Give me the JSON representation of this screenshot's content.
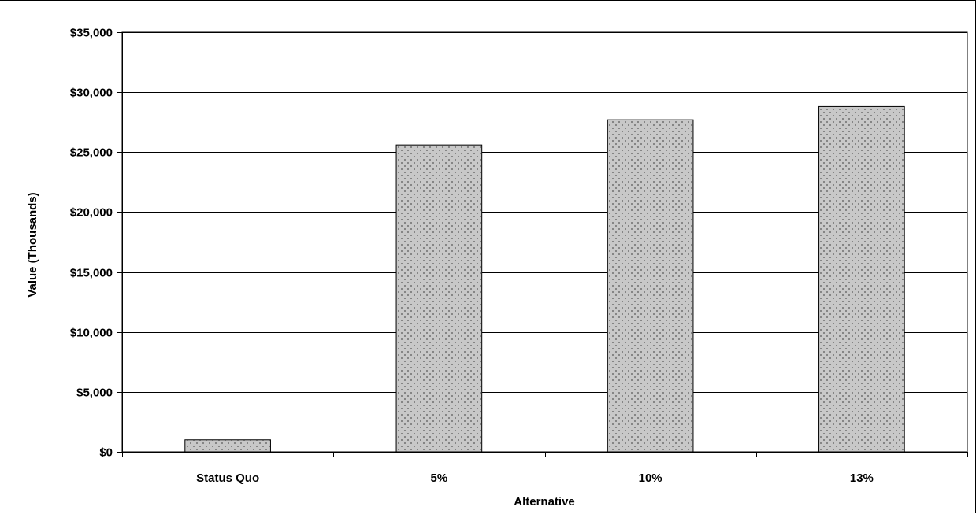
{
  "chart_data": {
    "type": "bar",
    "title": "",
    "xlabel": "Alternative",
    "ylabel": "Value (Thousands)",
    "categories": [
      "Status Quo",
      "5%",
      "10%",
      "13%"
    ],
    "values": [
      1000,
      25600,
      27700,
      28800
    ],
    "ylim": [
      0,
      35000
    ],
    "y_ticks": [
      0,
      5000,
      10000,
      15000,
      20000,
      25000,
      30000,
      35000
    ],
    "y_tick_labels": [
      "$0",
      "$5,000",
      "$10,000",
      "$15,000",
      "$20,000",
      "$25,000",
      "$30,000",
      "$35,000"
    ],
    "grid": true,
    "legend": "none",
    "bar_fill": "#c8c8c8",
    "bar_dot": "#555555",
    "bar_stroke": "#000000"
  }
}
